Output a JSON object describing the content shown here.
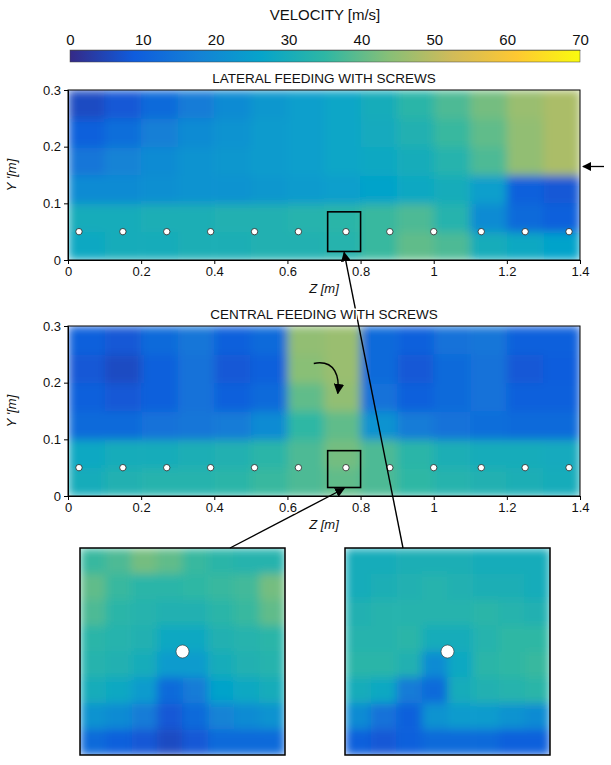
{
  "colorbar": {
    "title": "VELOCITY [m/s]",
    "range": [
      0,
      70
    ],
    "ticks": [
      0,
      10,
      20,
      30,
      40,
      50,
      60,
      70
    ]
  },
  "chart_data": [
    {
      "type": "heatmap",
      "title": "LATERAL FEEDING WITH SCREWS",
      "x_label": "Z [m]",
      "y_label": "Y '[m]",
      "xlim": [
        0,
        1.4
      ],
      "ylim": [
        0,
        0.3
      ],
      "xticks": [
        0,
        0.2,
        0.4,
        0.6,
        0.8,
        1,
        1.2,
        1.4
      ],
      "yticks": [
        0,
        0.1,
        0.2,
        0.3
      ],
      "z_edges": [
        0,
        0.1,
        0.2,
        0.3,
        0.4,
        0.5,
        0.6,
        0.7,
        0.8,
        0.9,
        1,
        1.1,
        1.2,
        1.3,
        1.4
      ],
      "y_edges": [
        0,
        0.05,
        0.1,
        0.15,
        0.2,
        0.25,
        0.3
      ],
      "cells": [
        [
          28,
          30,
          30,
          31,
          31,
          32,
          32,
          33,
          36,
          40,
          38,
          30,
          28,
          26
        ],
        [
          30,
          30,
          31,
          31,
          32,
          32,
          33,
          34,
          36,
          38,
          33,
          20,
          12,
          10
        ],
        [
          20,
          20,
          21,
          22,
          22,
          23,
          24,
          25,
          26,
          28,
          30,
          25,
          10,
          8
        ],
        [
          15,
          18,
          20,
          22,
          23,
          24,
          25,
          27,
          28,
          30,
          33,
          38,
          45,
          48
        ],
        [
          10,
          13,
          17,
          20,
          22,
          24,
          25,
          27,
          29,
          32,
          36,
          40,
          45,
          48
        ],
        [
          6,
          8,
          12,
          16,
          20,
          23,
          25,
          27,
          30,
          34,
          38,
          42,
          46,
          48
        ]
      ],
      "screws": {
        "z": [
          0.03,
          0.15,
          0.27,
          0.39,
          0.51,
          0.63,
          0.76,
          0.88,
          1.0,
          1.13,
          1.25,
          1.37
        ],
        "y": [
          0.05,
          0.05,
          0.05,
          0.05,
          0.05,
          0.05,
          0.05,
          0.05,
          0.05,
          0.05,
          0.05,
          0.05
        ]
      },
      "zoom_box": {
        "z": [
          0.71,
          0.8
        ],
        "y": [
          0.015,
          0.085
        ]
      },
      "inset": {
        "cells": [
          [
            30,
            30,
            31,
            31,
            31,
            30,
            30,
            30
          ],
          [
            30,
            31,
            32,
            33,
            32,
            31,
            31,
            30
          ],
          [
            32,
            33,
            33,
            33,
            33,
            34,
            33,
            32
          ],
          [
            33,
            33,
            34,
            30,
            30,
            33,
            35,
            35
          ],
          [
            34,
            34,
            32,
            20,
            28,
            34,
            35,
            36
          ],
          [
            30,
            28,
            16,
            12,
            30,
            32,
            33,
            34
          ],
          [
            20,
            14,
            10,
            22,
            24,
            24,
            22,
            20
          ],
          [
            10,
            8,
            10,
            12,
            12,
            12,
            10,
            10
          ]
        ]
      }
    },
    {
      "type": "heatmap",
      "title": "CENTRAL FEEDING WITH SCREWS",
      "x_label": "Z [m]",
      "y_label": "Y '[m]",
      "xlim": [
        0,
        1.4
      ],
      "ylim": [
        0,
        0.3
      ],
      "xticks": [
        0,
        0.2,
        0.4,
        0.6,
        0.8,
        1,
        1.2,
        1.4
      ],
      "yticks": [
        0,
        0.1,
        0.2,
        0.3
      ],
      "z_edges": [
        0,
        0.1,
        0.2,
        0.3,
        0.4,
        0.5,
        0.6,
        0.7,
        0.8,
        0.9,
        1,
        1.1,
        1.2,
        1.3,
        1.4
      ],
      "y_edges": [
        0,
        0.05,
        0.1,
        0.15,
        0.2,
        0.25,
        0.3
      ],
      "cells": [
        [
          30,
          32,
          33,
          33,
          34,
          36,
          38,
          40,
          38,
          35,
          33,
          32,
          31,
          30
        ],
        [
          28,
          30,
          30,
          31,
          32,
          34,
          38,
          42,
          38,
          34,
          31,
          30,
          30,
          29
        ],
        [
          12,
          12,
          14,
          15,
          16,
          20,
          35,
          40,
          22,
          16,
          14,
          13,
          12,
          12
        ],
        [
          10,
          8,
          10,
          14,
          10,
          12,
          40,
          45,
          14,
          10,
          12,
          14,
          10,
          10
        ],
        [
          8,
          6,
          10,
          14,
          8,
          10,
          44,
          46,
          12,
          8,
          12,
          14,
          8,
          9
        ],
        [
          10,
          8,
          12,
          15,
          10,
          12,
          45,
          46,
          12,
          10,
          14,
          15,
          10,
          10
        ]
      ],
      "screws": {
        "z": [
          0.03,
          0.15,
          0.27,
          0.39,
          0.51,
          0.63,
          0.76,
          0.88,
          1.0,
          1.13,
          1.25,
          1.37
        ],
        "y": [
          0.05,
          0.05,
          0.05,
          0.05,
          0.05,
          0.05,
          0.05,
          0.05,
          0.05,
          0.05,
          0.05,
          0.05
        ]
      },
      "zoom_box": {
        "z": [
          0.71,
          0.8
        ],
        "y": [
          0.015,
          0.08
        ]
      },
      "inset": {
        "cells": [
          [
            36,
            38,
            42,
            40,
            36,
            34,
            33,
            33
          ],
          [
            40,
            36,
            34,
            34,
            35,
            36,
            37,
            42
          ],
          [
            38,
            34,
            33,
            32,
            32,
            34,
            36,
            40
          ],
          [
            34,
            33,
            32,
            28,
            28,
            32,
            33,
            34
          ],
          [
            33,
            32,
            30,
            24,
            24,
            30,
            32,
            33
          ],
          [
            30,
            28,
            24,
            12,
            16,
            26,
            28,
            30
          ],
          [
            22,
            20,
            16,
            8,
            12,
            18,
            20,
            22
          ],
          [
            12,
            10,
            8,
            6,
            8,
            12,
            12,
            12
          ]
        ]
      }
    }
  ]
}
